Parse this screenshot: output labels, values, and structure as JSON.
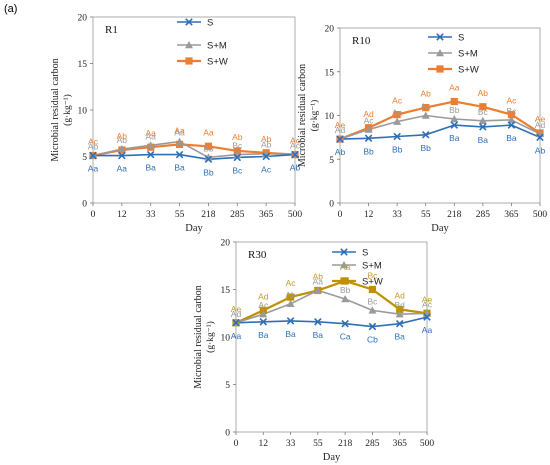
{
  "figure": {
    "panel_label": "(a)"
  },
  "colors": {
    "S": "#2e6fb7",
    "S+M": "#9a9a9a",
    "S+W_R1": "#ed7d31",
    "S+W_R10": "#ed7d31",
    "S+W_R30": "#bf9000",
    "letters_S+W_R30": "#c49a2a"
  },
  "chart_data": [
    {
      "type": "line",
      "panel": "R1",
      "title": "R1",
      "xlabel": "Day",
      "ylabel": "Microbial residual carbon",
      "ylabel_unit": "(g·kg⁻¹)",
      "categories": [
        "0",
        "12",
        "33",
        "55",
        "218",
        "285",
        "365",
        "500"
      ],
      "ylim": [
        0,
        20
      ],
      "yticks": [
        0,
        5,
        10,
        15,
        20
      ],
      "grid": false,
      "legend_position": "top-right",
      "series": [
        {
          "name": "S",
          "marker": "x",
          "values": [
            5.1,
            5.1,
            5.2,
            5.2,
            4.7,
            4.9,
            5.0,
            5.2
          ],
          "labels": [
            "Aa",
            "Aa",
            "Ba",
            "Ba",
            "Bb",
            "Bc",
            "Ac",
            "Ab"
          ]
        },
        {
          "name": "S+M",
          "marker": "triangle",
          "values": [
            5.1,
            5.8,
            6.2,
            6.6,
            4.9,
            5.2,
            5.3,
            5.2
          ],
          "labels": [
            "Ab",
            "Ab",
            "Aa",
            "Aa",
            "Bb",
            "Bc",
            "Ab",
            "Ac"
          ]
        },
        {
          "name": "S+W",
          "marker": "square",
          "values": [
            5.1,
            5.7,
            6.0,
            6.3,
            6.1,
            5.6,
            5.4,
            5.2
          ],
          "labels": [
            "Ac",
            "Ab",
            "Aa",
            "Aa",
            "Aa",
            "Ab",
            "Ab",
            "Ac"
          ]
        }
      ]
    },
    {
      "type": "line",
      "panel": "R10",
      "title": "R10",
      "xlabel": "Day",
      "ylabel": "Microbial residual carbon",
      "ylabel_unit": "(g·kg⁻¹)",
      "categories": [
        "0",
        "12",
        "33",
        "55",
        "218",
        "285",
        "365",
        "500"
      ],
      "ylim": [
        0,
        20
      ],
      "yticks": [
        0,
        5,
        10,
        15,
        20
      ],
      "grid": false,
      "legend_position": "top-right",
      "series": [
        {
          "name": "S",
          "marker": "x",
          "values": [
            7.3,
            7.4,
            7.6,
            7.8,
            8.9,
            8.7,
            8.9,
            7.5
          ],
          "labels": [
            "Ab",
            "Bb",
            "Bb",
            "Bb",
            "Ba",
            "Ba",
            "Ba",
            "Ab"
          ]
        },
        {
          "name": "S+M",
          "marker": "triangle",
          "values": [
            7.3,
            8.4,
            9.3,
            10.0,
            9.6,
            9.4,
            9.5,
            7.9
          ],
          "labels": [
            "Ad",
            "Ac",
            "Aa",
            "Aa",
            "Bb",
            "Bc",
            "Bc",
            "Ad"
          ]
        },
        {
          "name": "S+W",
          "marker": "square",
          "values": [
            7.3,
            8.6,
            10.1,
            10.9,
            11.6,
            11.0,
            10.1,
            8.0
          ],
          "labels": [
            "Ae",
            "Ad",
            "Ac",
            "Ab",
            "Aa",
            "Ab",
            "Ac",
            "Ae"
          ]
        }
      ]
    },
    {
      "type": "line",
      "panel": "R30",
      "title": "R30",
      "xlabel": "Day",
      "ylabel": "Microbial residual carbon",
      "ylabel_unit": "(g·kg⁻¹)",
      "categories": [
        "0",
        "12",
        "33",
        "55",
        "218",
        "285",
        "365",
        "500"
      ],
      "ylim": [
        0,
        20
      ],
      "yticks": [
        0,
        5,
        10,
        15,
        20
      ],
      "grid": false,
      "legend_position": "top-right",
      "series": [
        {
          "name": "S",
          "marker": "x",
          "values": [
            11.5,
            11.6,
            11.7,
            11.6,
            11.4,
            11.1,
            11.4,
            12.1
          ],
          "labels": [
            "Aa",
            "Ba",
            "Ba",
            "Ba",
            "Ca",
            "Cb",
            "Ba",
            "Aa"
          ]
        },
        {
          "name": "S+M",
          "marker": "triangle",
          "values": [
            11.5,
            12.4,
            13.5,
            14.9,
            14.0,
            12.8,
            12.4,
            12.5
          ],
          "labels": [
            "Ad",
            "Ac",
            "Ab",
            "Aa",
            "Bb",
            "Bc",
            "Bd",
            "Ac"
          ]
        },
        {
          "name": "S+W",
          "marker": "square",
          "values": [
            11.5,
            12.8,
            14.2,
            14.9,
            15.9,
            15.0,
            12.9,
            12.5
          ],
          "labels": [
            "Ae",
            "Ad",
            "Ac",
            "Ab",
            "Aa",
            "Bc",
            "Ad",
            "Ae"
          ]
        }
      ]
    }
  ]
}
